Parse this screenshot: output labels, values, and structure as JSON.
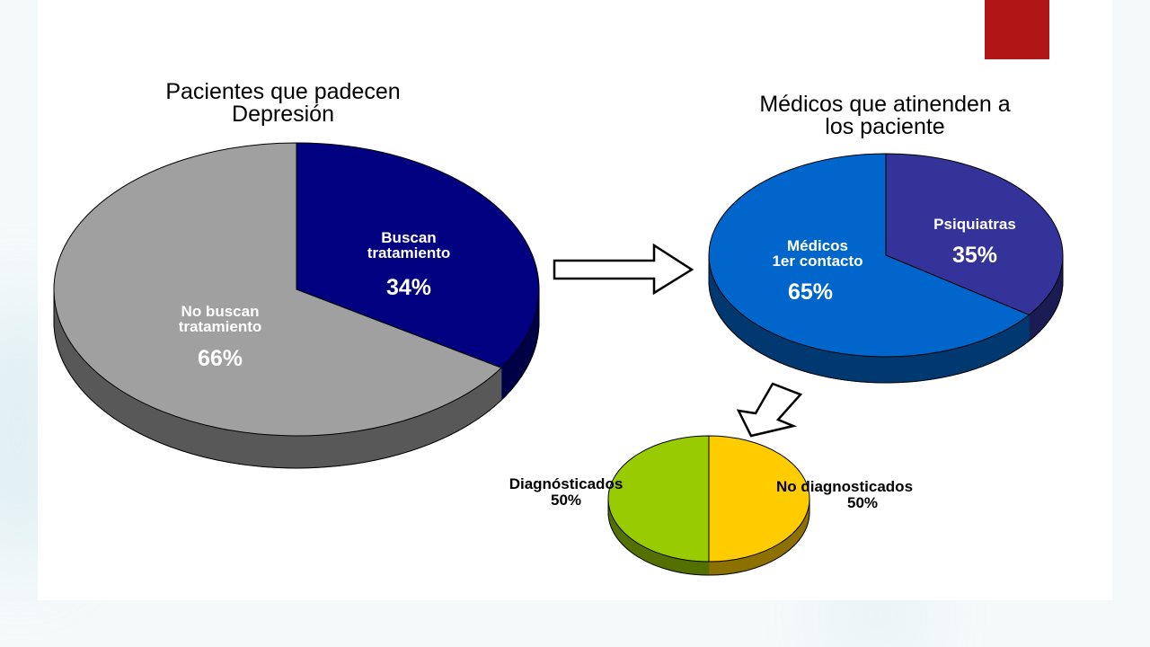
{
  "colors": {
    "accent_tab": "#b01616",
    "buscan": "#000080",
    "no_buscan": "#a0a0a0",
    "psiquiatras": "#333399",
    "medicos": "#0066cc",
    "diagnosticados": "#99cc00",
    "no_diagnosticados": "#ffcc00",
    "arrow_fill": "#ffffff",
    "arrow_stroke": "#000000"
  },
  "chart_data": [
    {
      "type": "pie",
      "title": "Pacientes que padecen Depresión",
      "slices": [
        {
          "label": "Buscan tratamiento",
          "value": 34,
          "display": "34%"
        },
        {
          "label": "No buscan tratamiento",
          "value": 66,
          "display": "66%"
        }
      ]
    },
    {
      "type": "pie",
      "title": "Médicos que atinenden a los paciente",
      "slices": [
        {
          "label": "Psiquiatras",
          "value": 35,
          "display": "35%"
        },
        {
          "label": "Médicos 1er contacto",
          "value": 65,
          "display": "65%"
        }
      ]
    },
    {
      "type": "pie",
      "title": "",
      "slices": [
        {
          "label": "No diagnosticados",
          "value": 50,
          "display": "50%"
        },
        {
          "label": "Diagnósticados",
          "value": 50,
          "display": "50%"
        }
      ]
    }
  ],
  "labels": {
    "pie1_title_l1": "Pacientes que padecen",
    "pie1_title_l2": "Depresión",
    "pie1_buscan_l1": "Buscan",
    "pie1_buscan_l2": "tratamiento",
    "pie1_buscan_pct": "34%",
    "pie1_no_l1": "No buscan",
    "pie1_no_l2": "tratamiento",
    "pie1_no_pct": "66%",
    "pie2_title_l1": "Médicos que atinenden a",
    "pie2_title_l2": "los paciente",
    "pie2_psiq": "Psiquiatras",
    "pie2_psiq_pct": "35%",
    "pie2_med_l1": "Médicos",
    "pie2_med_l2": "1er contacto",
    "pie2_med_pct": "65%",
    "pie3_diag": "Diagnósticados",
    "pie3_diag_pct": "50%",
    "pie3_nodiag": "No diagnosticados",
    "pie3_nodiag_pct": "50%"
  }
}
